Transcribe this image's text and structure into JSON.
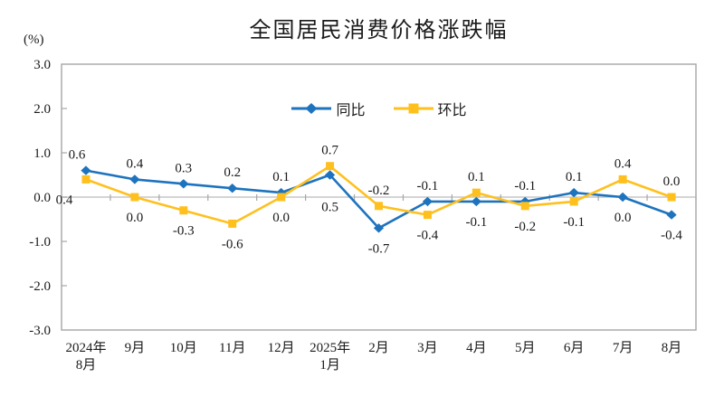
{
  "chart_data": {
    "type": "line",
    "title": "全国居民消费价格涨跌幅",
    "unit_label": "(%)",
    "categories": [
      [
        "2024年",
        "8月"
      ],
      [
        "9月"
      ],
      [
        "10月"
      ],
      [
        "11月"
      ],
      [
        "12月"
      ],
      [
        "2025年",
        "1月"
      ],
      [
        "2月"
      ],
      [
        "3月"
      ],
      [
        "4月"
      ],
      [
        "5月"
      ],
      [
        "6月"
      ],
      [
        "7月"
      ],
      [
        "8月"
      ]
    ],
    "series": [
      {
        "name": "同比",
        "marker": "diamond",
        "color": "#1e73be",
        "values": [
          0.6,
          0.4,
          0.3,
          0.2,
          0.1,
          0.5,
          -0.7,
          -0.1,
          -0.1,
          -0.1,
          0.1,
          0.0,
          -0.4
        ]
      },
      {
        "name": "环比",
        "marker": "square",
        "color": "#ffc01e",
        "values": [
          0.4,
          0.0,
          -0.3,
          -0.6,
          0.0,
          0.7,
          -0.2,
          -0.4,
          0.1,
          -0.2,
          -0.1,
          0.4,
          0.0
        ]
      }
    ],
    "y_ticks": [
      3.0,
      2.0,
      1.0,
      0.0,
      -1.0,
      -2.0,
      -3.0
    ],
    "ylim": [
      -3.0,
      3.0
    ],
    "value_decimals": 1,
    "grid": false,
    "legend_position": "top-center-inside",
    "colors": {
      "axis_border": "#a6a6a6",
      "zero_line": "#c6c6c6",
      "tick": "#a6a6a6",
      "text": "#1a1a1a",
      "background": "#ffffff"
    }
  }
}
